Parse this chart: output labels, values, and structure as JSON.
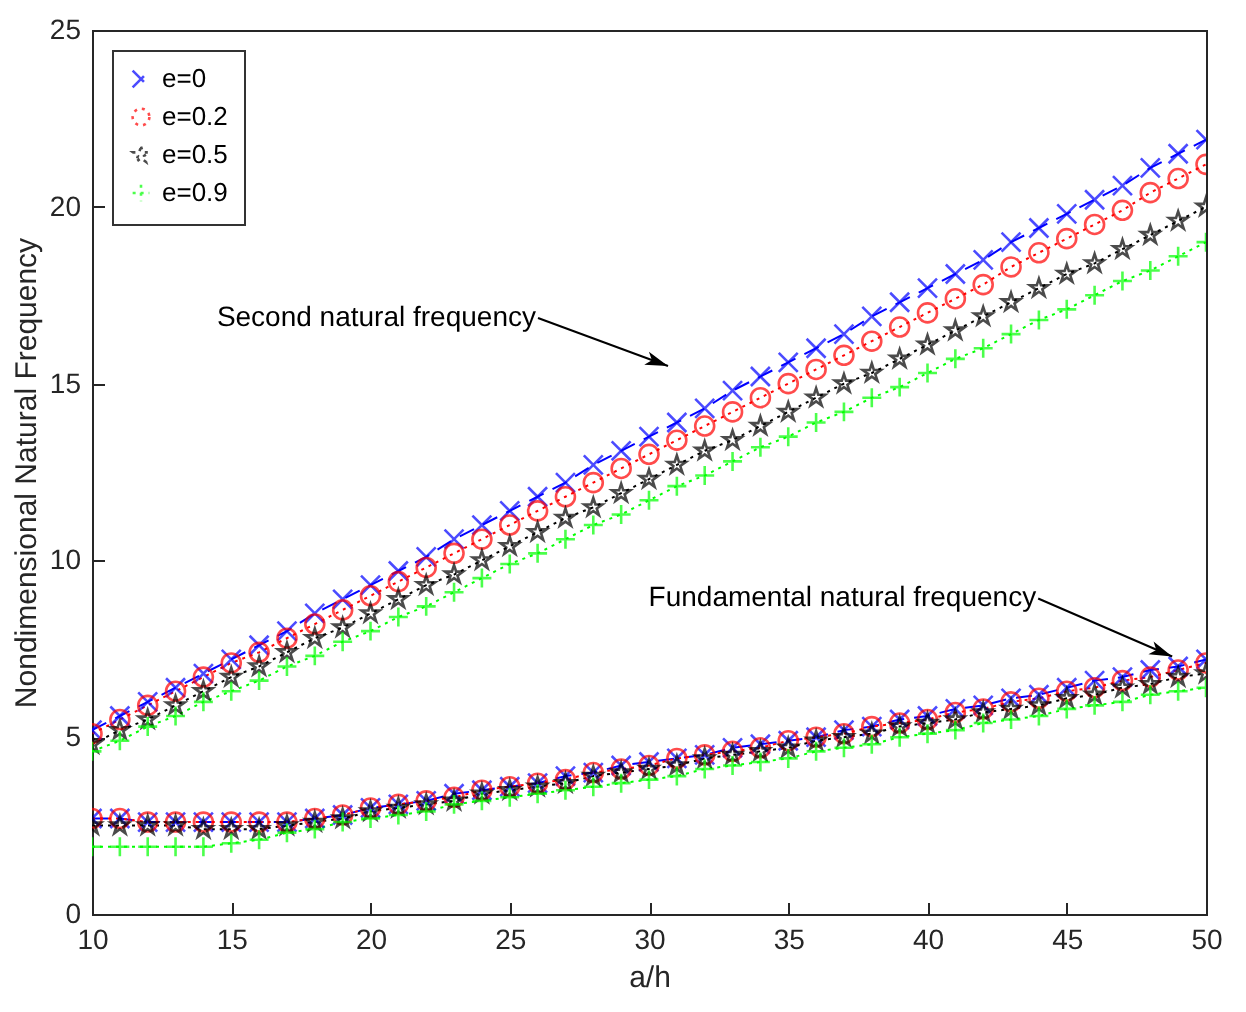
{
  "chart_data": {
    "type": "line",
    "xlabel": "a/h",
    "ylabel": "Nondimensional Natural Frequency",
    "x": [
      10,
      11,
      12,
      13,
      14,
      15,
      16,
      17,
      18,
      19,
      20,
      21,
      22,
      23,
      24,
      25,
      26,
      27,
      28,
      29,
      30,
      31,
      32,
      33,
      34,
      35,
      36,
      37,
      38,
      39,
      40,
      41,
      42,
      43,
      44,
      45,
      46,
      47,
      48,
      49,
      50
    ],
    "series": [
      {
        "name": "e=0",
        "color": "#0000ff",
        "marker": "cross",
        "line_style": "dashed",
        "values": [
          5.2,
          5.6,
          6.0,
          6.4,
          6.8,
          7.2,
          7.6,
          8.0,
          8.5,
          8.9,
          9.3,
          9.7,
          10.1,
          10.6,
          11.0,
          11.4,
          11.8,
          12.2,
          12.7,
          13.1,
          13.5,
          13.9,
          14.3,
          14.8,
          15.2,
          15.6,
          16.0,
          16.4,
          16.9,
          17.3,
          17.7,
          18.1,
          18.5,
          19.0,
          19.4,
          19.8,
          20.2,
          20.6,
          21.1,
          21.5,
          21.9
        ]
      },
      {
        "name": "e=0.2",
        "color": "#ff0000",
        "marker": "circle",
        "line_style": "dotted",
        "values": [
          5.1,
          5.5,
          5.9,
          6.3,
          6.7,
          7.1,
          7.4,
          7.8,
          8.2,
          8.6,
          9.0,
          9.4,
          9.8,
          10.2,
          10.6,
          11.0,
          11.4,
          11.8,
          12.2,
          12.6,
          13.0,
          13.4,
          13.8,
          14.2,
          14.6,
          15.0,
          15.4,
          15.8,
          16.2,
          16.6,
          17.0,
          17.4,
          17.8,
          18.3,
          18.7,
          19.1,
          19.5,
          19.9,
          20.4,
          20.8,
          21.2
        ]
      },
      {
        "name": "e=0.5",
        "color": "#000000",
        "marker": "star",
        "line_style": "dotted",
        "values": [
          4.8,
          5.2,
          5.5,
          5.9,
          6.3,
          6.7,
          7.0,
          7.4,
          7.8,
          8.1,
          8.5,
          8.9,
          9.3,
          9.6,
          10.0,
          10.4,
          10.8,
          11.2,
          11.5,
          11.9,
          12.3,
          12.7,
          13.1,
          13.4,
          13.8,
          14.2,
          14.6,
          15.0,
          15.3,
          15.7,
          16.1,
          16.5,
          16.9,
          17.3,
          17.7,
          18.1,
          18.4,
          18.8,
          19.2,
          19.6,
          20.0
        ]
      },
      {
        "name": "e=0.9",
        "color": "#00ff00",
        "marker": "plus",
        "line_style": "dotted",
        "values": [
          4.6,
          4.9,
          5.3,
          5.6,
          6.0,
          6.3,
          6.6,
          7.0,
          7.3,
          7.7,
          8.0,
          8.4,
          8.7,
          9.1,
          9.5,
          9.9,
          10.2,
          10.6,
          11.0,
          11.3,
          11.7,
          12.1,
          12.4,
          12.8,
          13.2,
          13.5,
          13.9,
          14.2,
          14.6,
          14.9,
          15.3,
          15.7,
          16.0,
          16.4,
          16.8,
          17.1,
          17.5,
          17.9,
          18.2,
          18.6,
          19.0
        ]
      },
      {
        "color": "#0000ff",
        "marker": "cross",
        "line_style": "dashed",
        "values": [
          2.7,
          2.7,
          2.6,
          2.6,
          2.6,
          2.6,
          2.6,
          2.6,
          2.7,
          2.8,
          3.0,
          3.1,
          3.2,
          3.4,
          3.5,
          3.6,
          3.7,
          3.9,
          4.0,
          4.2,
          4.3,
          4.4,
          4.5,
          4.7,
          4.8,
          4.9,
          5.0,
          5.2,
          5.3,
          5.5,
          5.6,
          5.8,
          5.9,
          6.1,
          6.2,
          6.4,
          6.6,
          6.7,
          6.9,
          7.0,
          7.2
        ]
      },
      {
        "color": "#ff0000",
        "marker": "circle",
        "line_style": "dotted",
        "values": [
          2.7,
          2.7,
          2.6,
          2.6,
          2.6,
          2.6,
          2.6,
          2.6,
          2.7,
          2.8,
          3.0,
          3.1,
          3.2,
          3.3,
          3.5,
          3.6,
          3.7,
          3.8,
          4.0,
          4.1,
          4.2,
          4.4,
          4.5,
          4.6,
          4.7,
          4.9,
          5.0,
          5.1,
          5.3,
          5.4,
          5.5,
          5.7,
          5.8,
          6.0,
          6.1,
          6.3,
          6.4,
          6.6,
          6.7,
          6.9,
          7.1
        ]
      },
      {
        "color": "#000000",
        "marker": "star",
        "line_style": "dotted",
        "values": [
          2.5,
          2.5,
          2.5,
          2.5,
          2.4,
          2.4,
          2.4,
          2.5,
          2.6,
          2.7,
          2.9,
          3.0,
          3.1,
          3.2,
          3.4,
          3.5,
          3.6,
          3.7,
          3.9,
          4.0,
          4.1,
          4.2,
          4.4,
          4.5,
          4.6,
          4.7,
          4.9,
          5.0,
          5.1,
          5.3,
          5.4,
          5.5,
          5.7,
          5.8,
          5.9,
          6.1,
          6.2,
          6.4,
          6.5,
          6.7,
          6.8
        ]
      },
      {
        "color": "#00ff00",
        "marker": "plus",
        "line_style": "dotted",
        "values": [
          1.9,
          1.9,
          1.9,
          1.9,
          1.9,
          2.0,
          2.1,
          2.3,
          2.4,
          2.6,
          2.7,
          2.8,
          2.9,
          3.1,
          3.2,
          3.3,
          3.4,
          3.5,
          3.6,
          3.7,
          3.8,
          3.9,
          4.1,
          4.2,
          4.3,
          4.4,
          4.6,
          4.7,
          4.8,
          5.0,
          5.1,
          5.2,
          5.4,
          5.5,
          5.6,
          5.8,
          5.9,
          6.0,
          6.2,
          6.3,
          6.4
        ]
      }
    ],
    "annotations": [
      "Second natural frequency",
      {
        "text": "Fundamental natural frequency",
        "x": 49,
        "y": 7.0
      }
    ],
    "xlim": [
      10,
      50
    ],
    "xticks": [
      10,
      15,
      20,
      25,
      30,
      35,
      40,
      45,
      50
    ],
    "ylim": [
      0,
      25
    ],
    "yticks": [
      0,
      5,
      10,
      15,
      20,
      25
    ],
    "grid": false,
    "legend": "top left"
  }
}
